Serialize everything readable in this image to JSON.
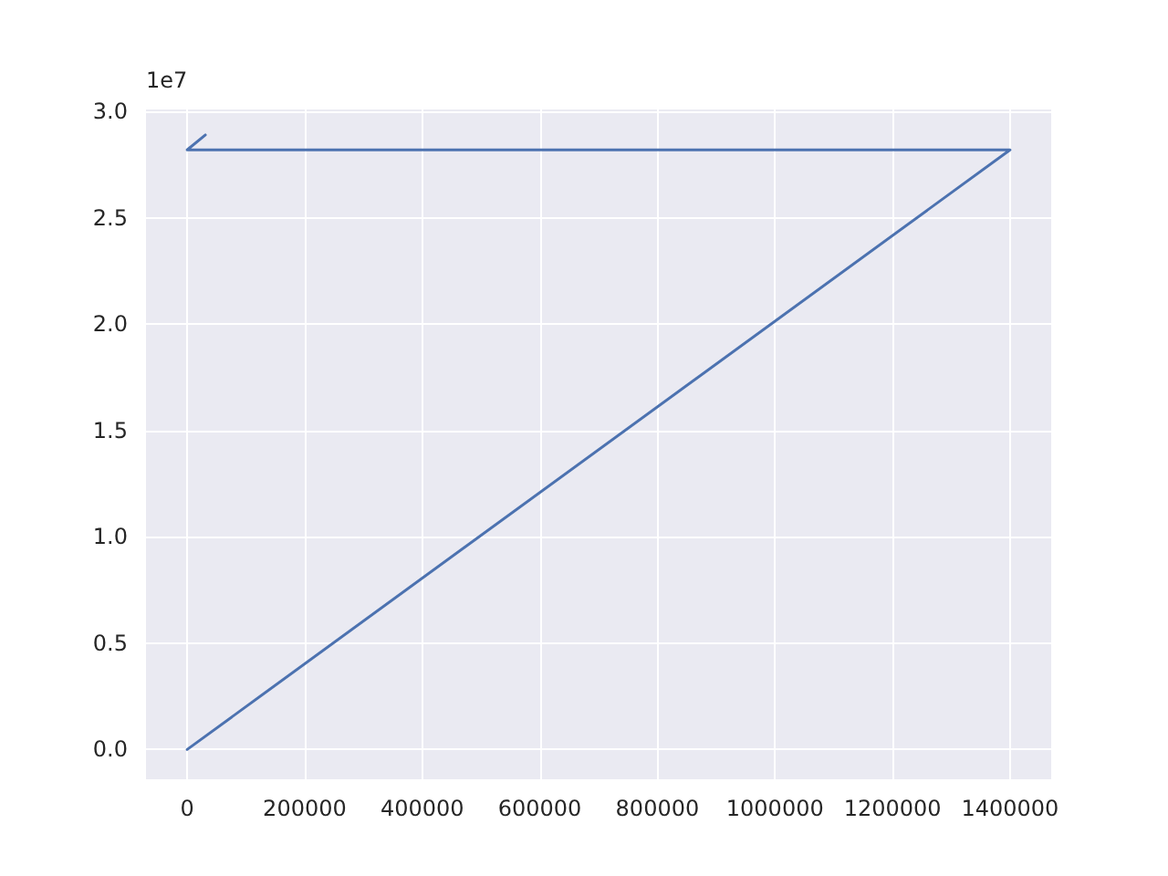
{
  "chart_data": {
    "type": "line",
    "x": [
      0,
      1400000,
      0,
      31000
    ],
    "series": [
      {
        "color": "#4c72b0",
        "values": [
          0,
          2.82,
          2.82,
          2.89
        ]
      }
    ],
    "xlim": [
      -70000,
      1470000
    ],
    "xticks": [
      0,
      200000,
      400000,
      600000,
      800000,
      1000000,
      1200000,
      1400000
    ],
    "ylim": [
      -0.14,
      3.01
    ],
    "yticks": [
      {
        "value": 0,
        "label": "0.0"
      },
      0.5,
      {
        "value": 1,
        "label": "1.0"
      },
      1.5,
      {
        "value": 2,
        "label": "2.0"
      },
      2.5,
      {
        "value": 3,
        "label": "3.0"
      }
    ],
    "annotations": [
      "1e7"
    ],
    "grid": true,
    "marker": "none",
    "line_style": "solid"
  }
}
